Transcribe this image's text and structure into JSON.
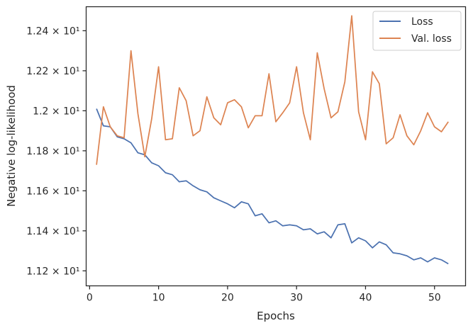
{
  "chart_data": {
    "type": "line",
    "xlabel": "Epochs",
    "ylabel": "Negative log-likelihood",
    "xlim": [
      -0.5,
      54.5
    ],
    "ylim": [
      11.125,
      12.52
    ],
    "xticks": [
      0,
      10,
      20,
      30,
      40,
      50
    ],
    "yticks": [
      {
        "value": 11.2,
        "label": "1.12 × 10¹"
      },
      {
        "value": 11.4,
        "label": "1.14 × 10¹"
      },
      {
        "value": 11.6,
        "label": "1.16 × 10¹"
      },
      {
        "value": 11.8,
        "label": "1.18 × 10¹"
      },
      {
        "value": 12.0,
        "label": "1.2 × 10¹"
      },
      {
        "value": 12.2,
        "label": "1.22 × 10¹"
      },
      {
        "value": 12.4,
        "label": "1.24 × 10¹"
      }
    ],
    "legend_position": "top-right",
    "grid": false,
    "x": [
      1,
      2,
      3,
      4,
      5,
      6,
      7,
      8,
      9,
      10,
      11,
      12,
      13,
      14,
      15,
      16,
      17,
      18,
      19,
      20,
      21,
      22,
      23,
      24,
      25,
      26,
      27,
      28,
      29,
      30,
      31,
      32,
      33,
      34,
      35,
      36,
      37,
      38,
      39,
      40,
      41,
      42,
      43,
      44,
      45,
      46,
      47,
      48,
      49,
      50,
      51,
      52
    ],
    "series": [
      {
        "name": "Loss",
        "color": "#4c72b0",
        "values": [
          12.01,
          11.925,
          11.92,
          11.87,
          11.86,
          11.84,
          11.79,
          11.78,
          11.74,
          11.725,
          11.69,
          11.68,
          11.645,
          11.65,
          11.625,
          11.605,
          11.595,
          11.565,
          11.55,
          11.535,
          11.515,
          11.545,
          11.535,
          11.475,
          11.485,
          11.44,
          11.45,
          11.425,
          11.43,
          11.425,
          11.405,
          11.41,
          11.385,
          11.395,
          11.365,
          11.43,
          11.435,
          11.34,
          11.365,
          11.35,
          11.315,
          11.345,
          11.33,
          11.29,
          11.285,
          11.275,
          11.255,
          11.265,
          11.245,
          11.265,
          11.255,
          11.235
        ]
      },
      {
        "name": "Val. loss",
        "color": "#dd8452",
        "values": [
          11.73,
          12.02,
          11.92,
          11.875,
          11.865,
          12.3,
          11.985,
          11.77,
          11.96,
          12.22,
          11.855,
          11.86,
          12.115,
          12.05,
          11.875,
          11.9,
          12.07,
          11.965,
          11.93,
          12.04,
          12.055,
          12.02,
          11.915,
          11.975,
          11.975,
          12.185,
          11.945,
          11.99,
          12.04,
          12.22,
          11.99,
          11.855,
          12.29,
          12.11,
          11.965,
          11.995,
          12.145,
          12.475,
          11.995,
          11.855,
          12.195,
          12.135,
          11.835,
          11.865,
          11.98,
          11.875,
          11.83,
          11.9,
          11.99,
          11.92,
          11.895,
          11.945
        ]
      }
    ]
  }
}
